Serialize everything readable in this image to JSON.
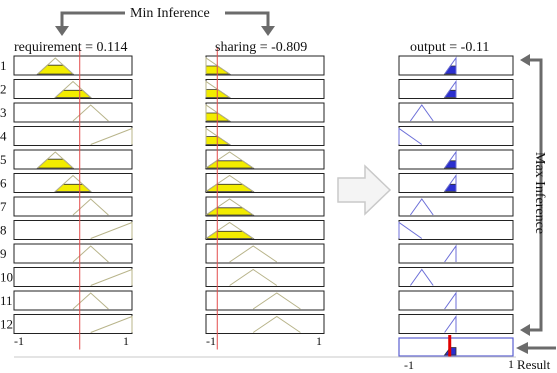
{
  "min_inference_label": "Min Inference",
  "max_inference_label": "Max Inference",
  "result_label": "Result",
  "panels": {
    "requirement": {
      "title": "requirement = 0.114",
      "axis": {
        "min": "-1",
        "max": "1"
      }
    },
    "sharing": {
      "title": "sharing = -0.809",
      "axis": {
        "min": "-1",
        "max": "1"
      }
    },
    "output": {
      "title": "output = -0.11",
      "axis": {
        "min": "-1",
        "max": "1"
      }
    }
  },
  "input_values": {
    "requirement": 0.114,
    "sharing": -0.809,
    "output": -0.11
  },
  "rule_numbers": [
    "1",
    "2",
    "3",
    "4",
    "5",
    "6",
    "7",
    "8",
    "9",
    "10",
    "11",
    "12"
  ],
  "rules": [
    {
      "req": [
        -0.6,
        -0.3,
        0.0
      ],
      "share": [
        -1.0,
        -1.0,
        -0.6
      ],
      "out": [
        -0.2,
        0.0,
        0.0
      ],
      "req_fill": 0.55,
      "share_fill": 0.5,
      "out_fill": 0.5
    },
    {
      "req": [
        -0.3,
        0.0,
        0.3
      ],
      "share": [
        -1.0,
        -1.0,
        -0.6
      ],
      "out": [
        -0.2,
        0.0,
        0.0
      ],
      "req_fill": 0.45,
      "share_fill": 0.5,
      "out_fill": 0.45
    },
    {
      "req": [
        0.0,
        0.3,
        0.6
      ],
      "share": [
        -1.0,
        -1.0,
        -0.6
      ],
      "out": [
        -0.8,
        -0.6,
        -0.4
      ],
      "req_fill": 0,
      "share_fill": 0.5,
      "out_fill": 0
    },
    {
      "req": [
        0.3,
        1.0,
        1.0
      ],
      "share": [
        -1.0,
        -1.0,
        -0.6
      ],
      "out": [
        -1.0,
        -1.0,
        -0.6
      ],
      "req_fill": 0,
      "share_fill": 0.5,
      "out_fill": 0
    },
    {
      "req": [
        -0.6,
        -0.3,
        0.0
      ],
      "share": [
        -1.0,
        -0.6,
        -0.2
      ],
      "out": [
        -0.2,
        0.0,
        0.0
      ],
      "req_fill": 0.55,
      "share_fill": 0.45,
      "out_fill": 0.45
    },
    {
      "req": [
        -0.3,
        0.0,
        0.3
      ],
      "share": [
        -1.0,
        -0.6,
        -0.2
      ],
      "out": [
        -0.2,
        0.0,
        0.0
      ],
      "req_fill": 0.45,
      "share_fill": 0.45,
      "out_fill": 0.45
    },
    {
      "req": [
        0.0,
        0.3,
        0.6
      ],
      "share": [
        -1.0,
        -0.6,
        -0.2
      ],
      "out": [
        -0.8,
        -0.6,
        -0.4
      ],
      "req_fill": 0,
      "share_fill": 0.45,
      "out_fill": 0
    },
    {
      "req": [
        0.3,
        1.0,
        1.0
      ],
      "share": [
        -1.0,
        -0.6,
        -0.2
      ],
      "out": [
        -1.0,
        -1.0,
        -0.6
      ],
      "req_fill": 0,
      "share_fill": 0.45,
      "out_fill": 0
    },
    {
      "req": [
        0.0,
        0.3,
        0.6
      ],
      "share": [
        -0.6,
        -0.2,
        0.2
      ],
      "out": [
        -0.2,
        0.0,
        0.0
      ],
      "req_fill": 0,
      "share_fill": 0,
      "out_fill": 0
    },
    {
      "req": [
        0.3,
        1.0,
        1.0
      ],
      "share": [
        -0.6,
        -0.2,
        0.2
      ],
      "out": [
        -0.8,
        -0.6,
        -0.4
      ],
      "req_fill": 0,
      "share_fill": 0,
      "out_fill": 0
    },
    {
      "req": [
        0.0,
        0.3,
        0.6
      ],
      "share": [
        -0.2,
        0.2,
        0.6
      ],
      "out": [
        -0.2,
        0.0,
        0.0
      ],
      "req_fill": 0,
      "share_fill": 0,
      "out_fill": 0
    },
    {
      "req": [
        0.3,
        1.0,
        1.0
      ],
      "share": [
        -0.2,
        0.2,
        0.6
      ],
      "out": [
        -0.2,
        0.0,
        0.0
      ],
      "req_fill": 0,
      "share_fill": 0,
      "out_fill": 0
    }
  ],
  "aggregate": {
    "out": [
      -0.2,
      0.0,
      0.0
    ],
    "fill": 0.5
  },
  "colors": {
    "yellow_fill": "#f2ec00",
    "input_mf_line": "#b8b48a",
    "output_fill": "#2b2fcf",
    "output_line": "#6c6fd8",
    "cursor_line": "#e34b4b",
    "result_line": "#e00000",
    "box_border": "#222222",
    "arrow": "#6b6b6b"
  }
}
